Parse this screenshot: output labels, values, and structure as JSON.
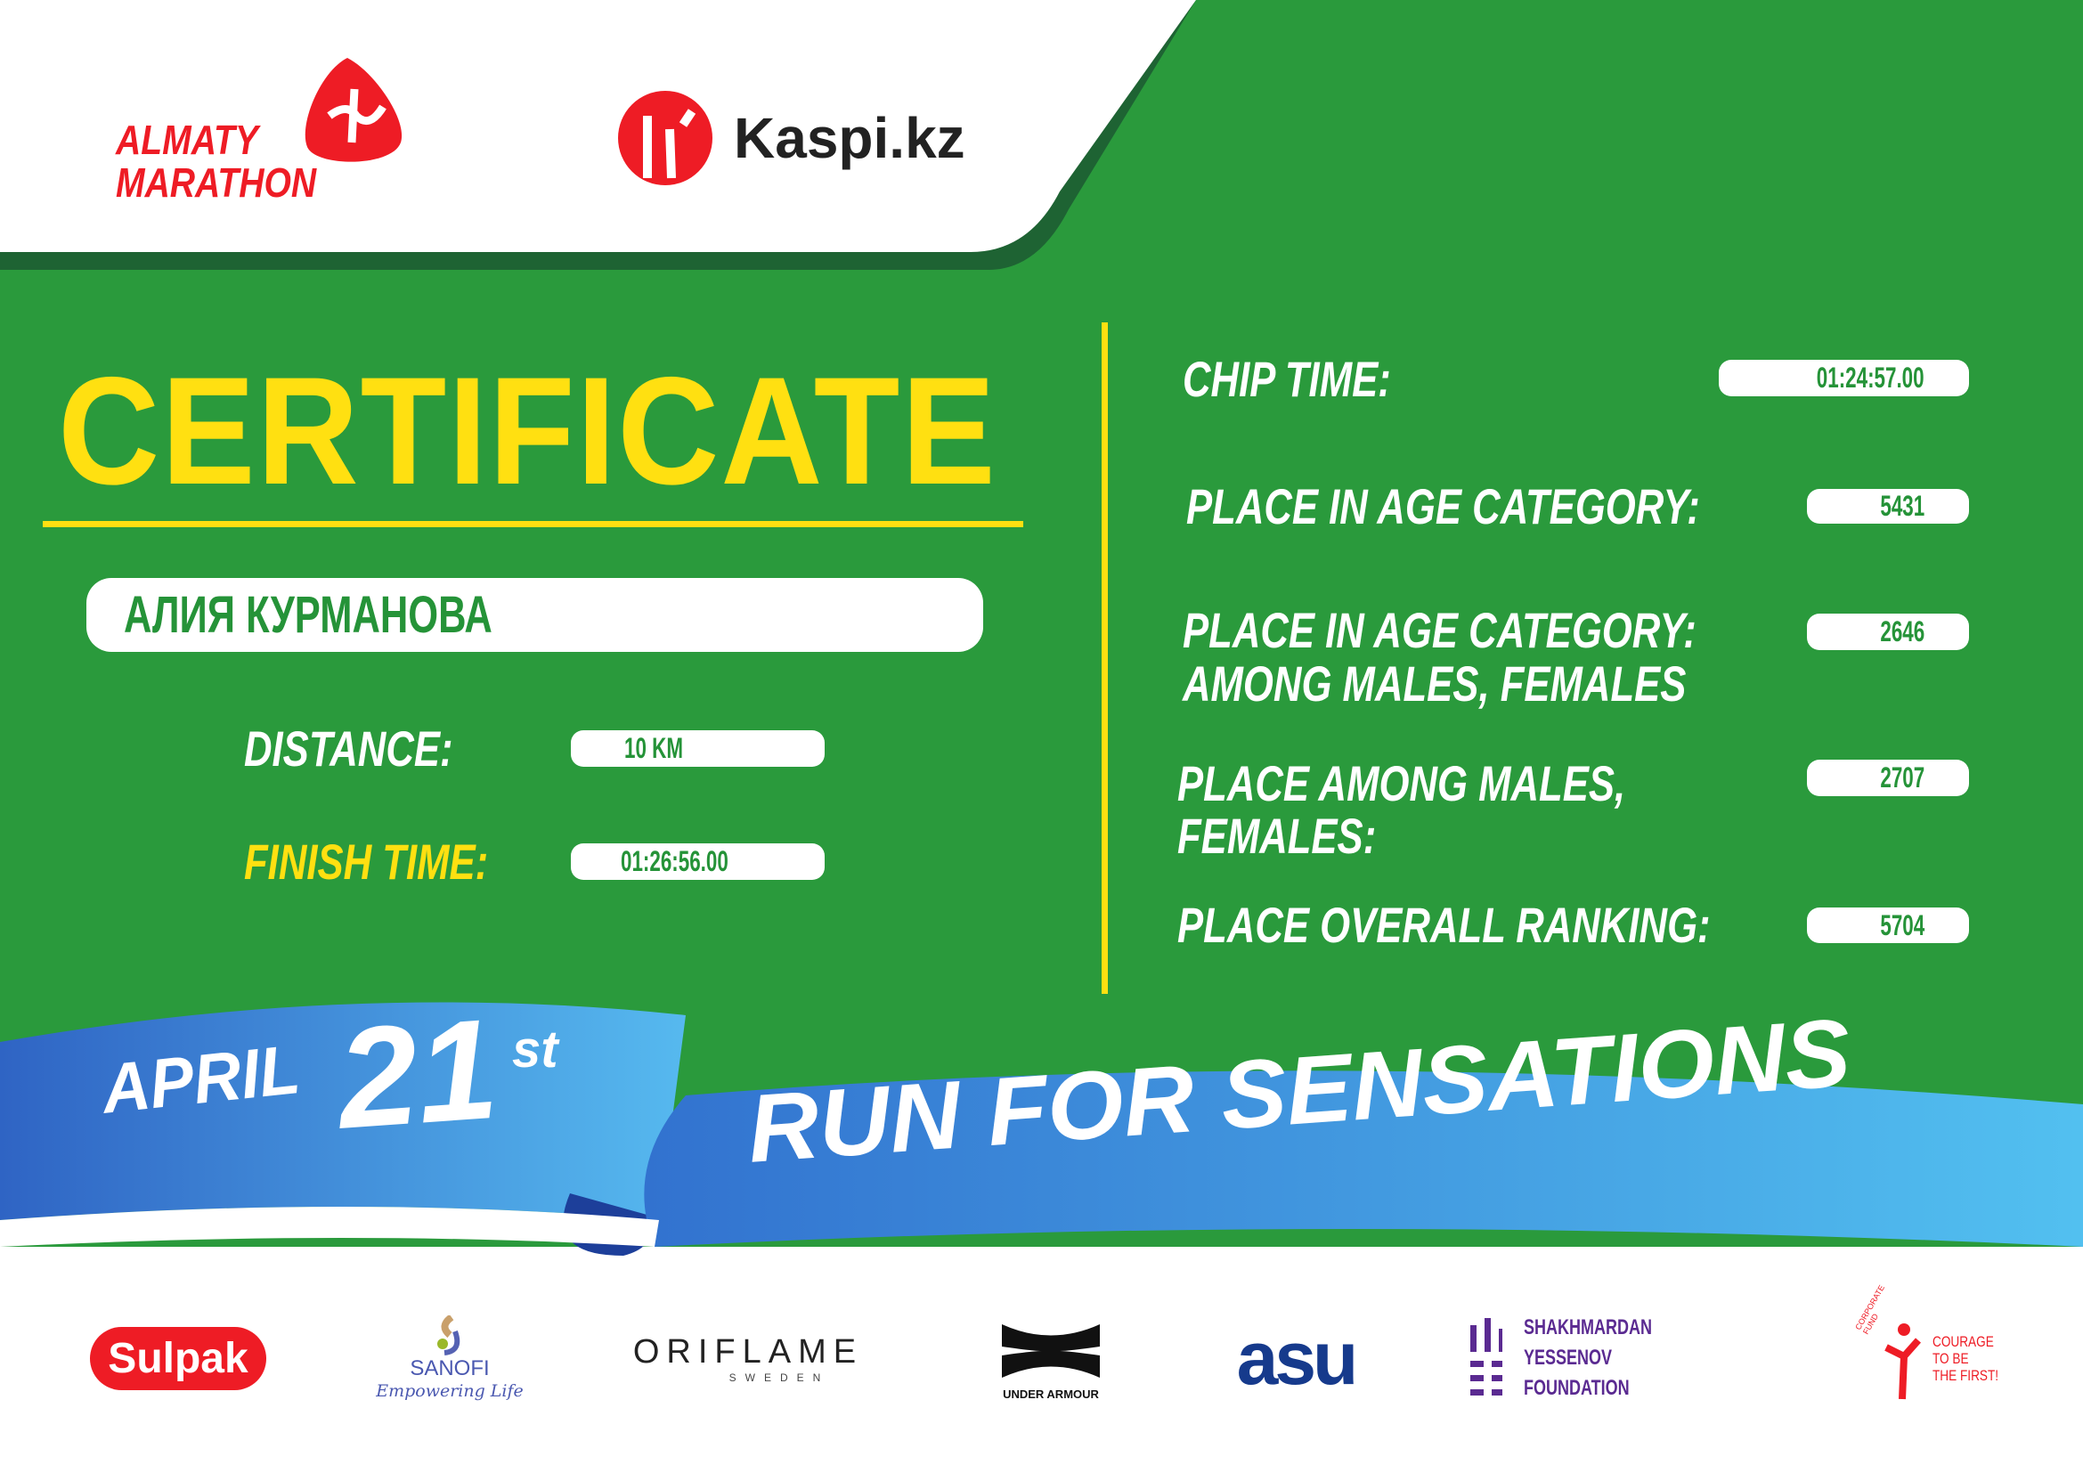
{
  "header": {
    "event_logo_line1": "ALMATY",
    "event_logo_line2": "MARATHON",
    "sponsor_logo": "Kaspi.kz"
  },
  "certificate": {
    "title": "CERTIFICATE",
    "participant_name": "АЛИЯ КУРМАНОВА",
    "distance_label": "DISTANCE:",
    "distance_value": "10 KM",
    "finish_label": "FINISH TIME:",
    "finish_value": "01:26:56.00"
  },
  "results": [
    {
      "label": "CHIP TIME:",
      "value": "01:24:57.00"
    },
    {
      "label": "PLACE IN AGE CATEGORY:",
      "value": "5431"
    },
    {
      "label": "PLACE IN AGE CATEGORY:",
      "label2": "AMONG MALES, FEMALES",
      "value": "2646"
    },
    {
      "label": "PLACE AMONG MALES,",
      "label2": "FEMALES:",
      "value": "2707"
    },
    {
      "label": "PLACE OVERALL RANKING:",
      "value": "5704"
    }
  ],
  "ribbon": {
    "month": "APRIL",
    "day": "21",
    "suffix": "st",
    "slogan": "RUN FOR SENSATIONS"
  },
  "sponsors": {
    "sulpak": "Sulpak",
    "sanofi": "SANOFI",
    "sanofi_tag": "Empowering Life",
    "oriflame": "ORIFLAME",
    "oriflame_sub": "SWEDEN",
    "under_armour": "UNDER ARMOUR",
    "asu": "asu",
    "yessenov1": "SHAKHMARDAN YESSENOV",
    "yessenov2": "FOUNDATION",
    "fund_arc": "CORPORATE FUND",
    "courage1": "COURAGE",
    "courage2": "TO BE",
    "courage3": "THE FIRST!"
  },
  "colors": {
    "green": "#2a9a3c",
    "dark_green": "#1e6333",
    "yellow": "#ffe011",
    "red": "#ee1c25",
    "blue": "#3a86d8"
  }
}
